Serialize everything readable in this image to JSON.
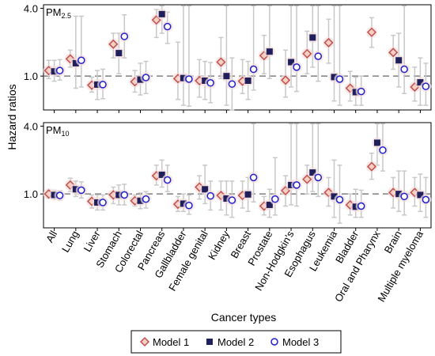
{
  "chart_data": {
    "type": "scatter",
    "ylabel": "Hazard ratios",
    "xlabel": "Cancer types",
    "y_scale": "log",
    "y_ticks": [
      1.0,
      4.0
    ],
    "y_tick_labels": [
      "1.0",
      "4.0"
    ],
    "reference_line": 1.0,
    "categories": [
      "All",
      "Lung",
      "Liver",
      "Stomach",
      "Colorectal",
      "Pancreas",
      "Gallbladder",
      "Female genital",
      "Kidney",
      "Breast",
      "Prostate",
      "Non-Hodgkin's",
      "Esophagus",
      "Leukemia",
      "Bladder",
      "Oral and Pharynx",
      "Brain",
      "Multiple myeloma"
    ],
    "legend": [
      {
        "name": "Model 1",
        "marker": "diamond",
        "color": "#c0504d"
      },
      {
        "name": "Model 2",
        "marker": "square",
        "color": "#1f1f5c"
      },
      {
        "name": "Model 3",
        "marker": "circle",
        "color": "#1f1fcc"
      }
    ],
    "panels": [
      {
        "label_base": "PM",
        "label_sub": "2.5",
        "ylim": [
          0.5,
          4.3
        ],
        "series": [
          {
            "name": "Model 1",
            "values": [
              1.12,
              1.42,
              0.83,
              1.92,
              0.89,
              3.15,
              0.95,
              0.91,
              1.33,
              0.9,
              1.52,
              0.92,
              1.58,
              1.98,
              0.78,
              2.45,
              1.62,
              0.8
            ],
            "lower": [
              0.95,
              1.2,
              0.72,
              1.45,
              0.72,
              2.2,
              0.62,
              0.65,
              0.95,
              0.7,
              1.05,
              0.65,
              1.05,
              1.3,
              0.6,
              1.8,
              1.15,
              0.6
            ],
            "upper": [
              1.38,
              1.7,
              0.98,
              2.4,
              1.12,
              3.9,
              2.0,
              1.4,
              2.2,
              1.4,
              2.3,
              1.7,
              2.5,
              3.2,
              1.1,
              3.3,
              2.3,
              1.2
            ]
          },
          {
            "name": "Model 2",
            "values": [
              1.1,
              1.3,
              0.84,
              1.6,
              0.93,
              3.55,
              0.96,
              0.91,
              1.0,
              0.91,
              1.65,
              1.33,
              2.2,
              0.98,
              0.72,
              null,
              1.38,
              0.88
            ],
            "lower": [
              0.9,
              0.78,
              0.62,
              1.05,
              0.68,
              2.4,
              0.55,
              0.62,
              0.55,
              0.62,
              0.95,
              0.8,
              1.2,
              0.6,
              0.55,
              null,
              0.8,
              0.55
            ],
            "upper": [
              1.38,
              3.4,
              1.12,
              2.4,
              1.3,
              4.2,
              4.2,
              1.35,
              4.2,
              1.35,
              4.2,
              4.2,
              4.2,
              4.2,
              0.98,
              null,
              2.4,
              1.45
            ]
          },
          {
            "name": "Model 3",
            "values": [
              1.12,
              1.38,
              0.84,
              2.25,
              0.97,
              2.75,
              0.94,
              0.87,
              0.85,
              1.15,
              null,
              1.2,
              1.5,
              0.94,
              0.73,
              null,
              1.15,
              0.81
            ],
            "lower": [
              0.92,
              0.8,
              0.63,
              1.45,
              0.7,
              1.95,
              0.54,
              0.58,
              0.5,
              0.75,
              null,
              0.73,
              0.9,
              0.55,
              0.55,
              null,
              0.7,
              0.55
            ],
            "upper": [
              1.4,
              3.4,
              1.15,
              3.5,
              1.35,
              3.7,
              4.2,
              1.32,
              1.45,
              4.2,
              null,
              4.2,
              4.2,
              4.2,
              1.0,
              null,
              4.2,
              1.3
            ]
          }
        ]
      },
      {
        "label_base": "PM",
        "label_sub": "10",
        "ylim": [
          0.5,
          4.3
        ],
        "series": [
          {
            "name": "Model 1",
            "values": [
              1.0,
              1.2,
              0.86,
              0.98,
              0.87,
              1.45,
              0.81,
              1.15,
              0.97,
              0.97,
              0.78,
              1.07,
              1.35,
              1.03,
              0.8,
              1.75,
              1.03,
              1.03
            ],
            "lower": [
              0.92,
              1.05,
              0.75,
              0.82,
              0.78,
              1.2,
              0.7,
              0.9,
              0.72,
              0.75,
              0.65,
              0.78,
              1.0,
              0.78,
              0.65,
              1.35,
              0.75,
              0.78
            ],
            "upper": [
              1.08,
              1.38,
              0.98,
              1.15,
              0.98,
              1.8,
              0.95,
              1.45,
              1.3,
              1.3,
              0.95,
              1.45,
              1.8,
              1.4,
              1.0,
              2.3,
              1.4,
              1.4
            ]
          },
          {
            "name": "Model 2",
            "values": [
              0.98,
              1.1,
              0.84,
              0.98,
              0.87,
              1.48,
              0.82,
              1.1,
              0.91,
              0.99,
              0.8,
              1.2,
              1.55,
              0.95,
              0.77,
              2.85,
              1.0,
              0.98
            ],
            "lower": [
              0.9,
              0.95,
              0.72,
              0.8,
              0.74,
              1.15,
              0.7,
              0.82,
              0.65,
              0.7,
              0.62,
              0.8,
              1.05,
              0.62,
              0.62,
              1.8,
              0.7,
              0.7
            ],
            "upper": [
              1.08,
              1.3,
              0.98,
              1.2,
              1.02,
              2.0,
              1.0,
              1.8,
              1.3,
              1.4,
              1.1,
              4.2,
              4.2,
              2.0,
              1.1,
              4.2,
              1.6,
              1.5
            ]
          },
          {
            "name": "Model 3",
            "values": [
              0.97,
              1.08,
              0.84,
              0.98,
              0.9,
              1.33,
              0.79,
              0.96,
              0.88,
              1.4,
              0.9,
              1.2,
              1.4,
              0.89,
              0.78,
              2.45,
              0.95,
              0.89
            ],
            "lower": [
              0.88,
              0.92,
              0.72,
              0.8,
              0.75,
              1.05,
              0.66,
              0.72,
              0.62,
              0.85,
              0.65,
              0.78,
              0.95,
              0.55,
              0.62,
              1.6,
              0.65,
              0.62
            ],
            "upper": [
              1.07,
              1.28,
              0.98,
              1.22,
              1.05,
              1.8,
              0.98,
              1.3,
              1.3,
              4.2,
              2.1,
              4.2,
              4.2,
              1.8,
              1.08,
              4.2,
              1.6,
              1.4
            ]
          }
        ]
      }
    ]
  }
}
